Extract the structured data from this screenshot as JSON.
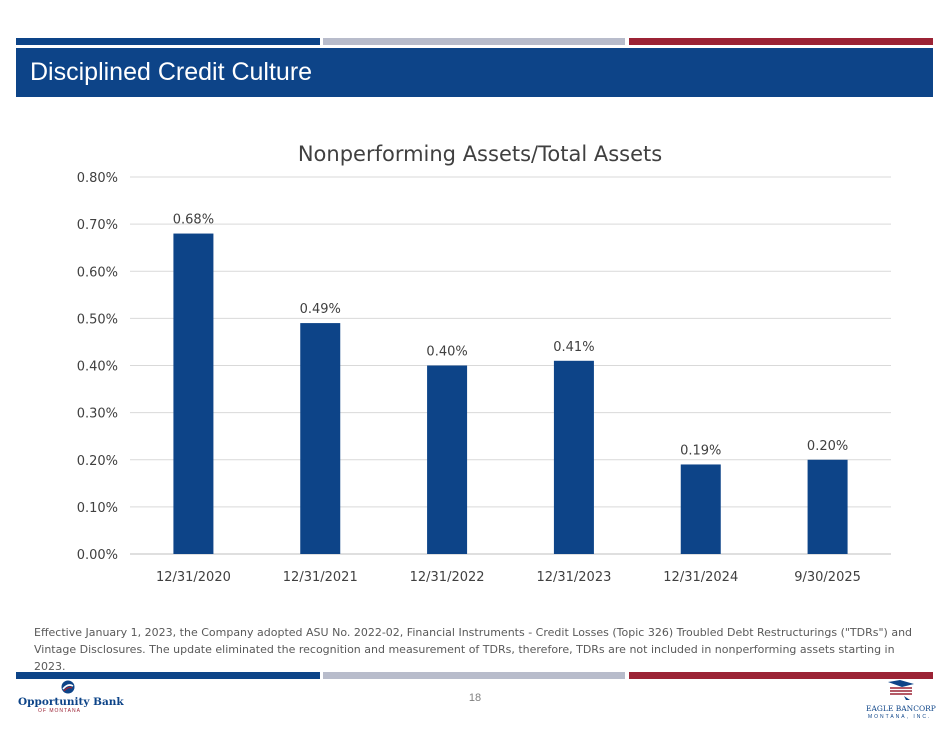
{
  "header": {
    "title": "Disciplined Credit Culture",
    "colors": {
      "blue": "#0d4488",
      "gray": "#b8bccb",
      "red": "#9b2335"
    }
  },
  "chart_data": {
    "type": "bar",
    "title": "Nonperforming Assets/Total Assets",
    "xlabel": "",
    "ylabel": "",
    "categories": [
      "12/31/2020",
      "12/31/2021",
      "12/31/2022",
      "12/31/2023",
      "12/31/2024",
      "9/30/2025"
    ],
    "values": [
      0.68,
      0.49,
      0.4,
      0.41,
      0.19,
      0.2
    ],
    "data_labels": [
      "0.68%",
      "0.49%",
      "0.40%",
      "0.41%",
      "0.19%",
      "0.20%"
    ],
    "y_ticks": [
      "0.00%",
      "0.10%",
      "0.20%",
      "0.30%",
      "0.40%",
      "0.50%",
      "0.60%",
      "0.70%",
      "0.80%"
    ],
    "ylim": [
      0,
      0.8
    ],
    "grid": true,
    "bar_color": "#0d4488"
  },
  "footnote": "Effective January 1, 2023, the Company adopted ASU No. 2022-02, Financial Instruments - Credit Losses (Topic 326) Troubled Debt Restructurings (\"TDRs\") and Vintage Disclosures. The update eliminated the recognition and measurement of TDRs, therefore, TDRs are not included in nonperforming assets starting in 2023.",
  "footer": {
    "page_number": "18",
    "left_logo": {
      "name": "Opportunity Bank",
      "sub": "OF MONTANA",
      "icon": "opportunity-bank-logo-icon"
    },
    "right_logo": {
      "name": "EAGLE BANCORP",
      "sub": "MONTANA, INC.",
      "icon": "eagle-flag-logo-icon"
    }
  }
}
